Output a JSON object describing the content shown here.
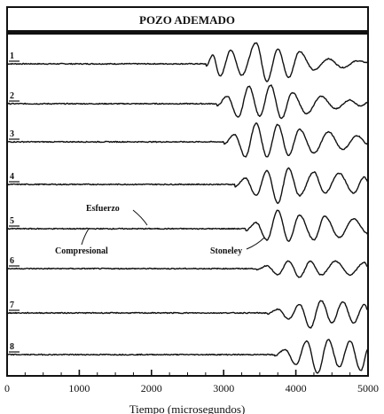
{
  "chart_data": {
    "type": "line",
    "title": "POZO ADEMADO",
    "xlabel": "Tiempo (microsegundos)",
    "ylabel": "",
    "xlim": [
      0,
      5000
    ],
    "x_ticks": [
      "0",
      "1000",
      "2000",
      "3000",
      "4000",
      "5000"
    ],
    "grid": false,
    "legend": "none",
    "series": [
      {
        "name": "1",
        "onset": 2750,
        "amplitude": 0.8,
        "peaks": [
          [
            2750,
            -0.12
          ],
          [
            2850,
            0.35
          ],
          [
            2950,
            -0.5
          ],
          [
            3100,
            0.55
          ],
          [
            3250,
            -0.45
          ],
          [
            3450,
            0.85
          ],
          [
            3600,
            -0.7
          ],
          [
            3750,
            0.6
          ],
          [
            3900,
            -0.55
          ],
          [
            4050,
            0.5
          ],
          [
            4250,
            -0.25
          ],
          [
            4450,
            0.2
          ],
          [
            4650,
            -0.15
          ],
          [
            4850,
            0.12
          ],
          [
            5000,
            0.05
          ]
        ]
      },
      {
        "name": "2",
        "onset": 2900,
        "amplitude": 0.8,
        "peaks": [
          [
            2900,
            -0.1
          ],
          [
            3050,
            0.3
          ],
          [
            3200,
            -0.55
          ],
          [
            3350,
            0.7
          ],
          [
            3500,
            -0.5
          ],
          [
            3650,
            0.75
          ],
          [
            3800,
            -0.6
          ],
          [
            3950,
            0.45
          ],
          [
            4150,
            -0.4
          ],
          [
            4350,
            0.3
          ],
          [
            4550,
            -0.2
          ],
          [
            4750,
            0.15
          ],
          [
            4900,
            -0.1
          ],
          [
            5000,
            0.05
          ]
        ]
      },
      {
        "name": "3",
        "onset": 3000,
        "amplitude": 0.8,
        "peaks": [
          [
            3000,
            -0.1
          ],
          [
            3150,
            0.3
          ],
          [
            3300,
            -0.6
          ],
          [
            3450,
            0.75
          ],
          [
            3600,
            -0.6
          ],
          [
            3750,
            0.7
          ],
          [
            3900,
            -0.55
          ],
          [
            4050,
            0.5
          ],
          [
            4250,
            -0.45
          ],
          [
            4450,
            0.4
          ],
          [
            4650,
            -0.3
          ],
          [
            4850,
            0.25
          ],
          [
            5000,
            -0.1
          ]
        ]
      },
      {
        "name": "4",
        "onset": 3150,
        "amplitude": 0.8,
        "peaks": [
          [
            3150,
            -0.1
          ],
          [
            3300,
            0.25
          ],
          [
            3450,
            -0.45
          ],
          [
            3600,
            0.55
          ],
          [
            3750,
            -0.75
          ],
          [
            3900,
            0.65
          ],
          [
            4050,
            -0.45
          ],
          [
            4250,
            0.5
          ],
          [
            4400,
            -0.35
          ],
          [
            4600,
            0.45
          ],
          [
            4800,
            -0.35
          ],
          [
            4950,
            0.3
          ],
          [
            5000,
            0.1
          ]
        ]
      },
      {
        "name": "5",
        "onset": 3300,
        "amplitude": 0.8,
        "peaks": [
          [
            3300,
            -0.08
          ],
          [
            3450,
            0.25
          ],
          [
            3600,
            -0.45
          ],
          [
            3750,
            0.75
          ],
          [
            3900,
            -0.5
          ],
          [
            4050,
            0.55
          ],
          [
            4250,
            -0.45
          ],
          [
            4400,
            0.5
          ],
          [
            4600,
            -0.35
          ],
          [
            4800,
            0.4
          ],
          [
            5000,
            -0.2
          ]
        ]
      },
      {
        "name": "6",
        "onset": 3450,
        "amplitude": 0.55,
        "peaks": [
          [
            3450,
            -0.06
          ],
          [
            3600,
            0.12
          ],
          [
            3750,
            -0.25
          ],
          [
            3900,
            0.3
          ],
          [
            4050,
            -0.35
          ],
          [
            4200,
            0.3
          ],
          [
            4350,
            -0.25
          ],
          [
            4550,
            0.3
          ],
          [
            4750,
            -0.25
          ],
          [
            4950,
            0.25
          ],
          [
            5000,
            0.05
          ]
        ]
      },
      {
        "name": "7",
        "onset": 3600,
        "amplitude": 0.8,
        "peaks": [
          [
            3600,
            -0.05
          ],
          [
            3750,
            0.15
          ],
          [
            3900,
            -0.25
          ],
          [
            4050,
            0.35
          ],
          [
            4200,
            -0.6
          ],
          [
            4350,
            0.5
          ],
          [
            4500,
            -0.4
          ],
          [
            4650,
            0.45
          ],
          [
            4800,
            -0.4
          ],
          [
            4950,
            0.35
          ],
          [
            5000,
            0.1
          ]
        ]
      },
      {
        "name": "8",
        "onset": 3700,
        "amplitude": 0.8,
        "peaks": [
          [
            3700,
            -0.05
          ],
          [
            3850,
            0.2
          ],
          [
            4000,
            -0.4
          ],
          [
            4150,
            0.55
          ],
          [
            4300,
            -0.75
          ],
          [
            4450,
            0.6
          ],
          [
            4600,
            -0.5
          ],
          [
            4750,
            0.55
          ],
          [
            4900,
            -0.65
          ],
          [
            5000,
            0.2
          ]
        ]
      }
    ],
    "annotations": [
      "Esfuerzo",
      "Compresional",
      "Stoneley"
    ]
  }
}
